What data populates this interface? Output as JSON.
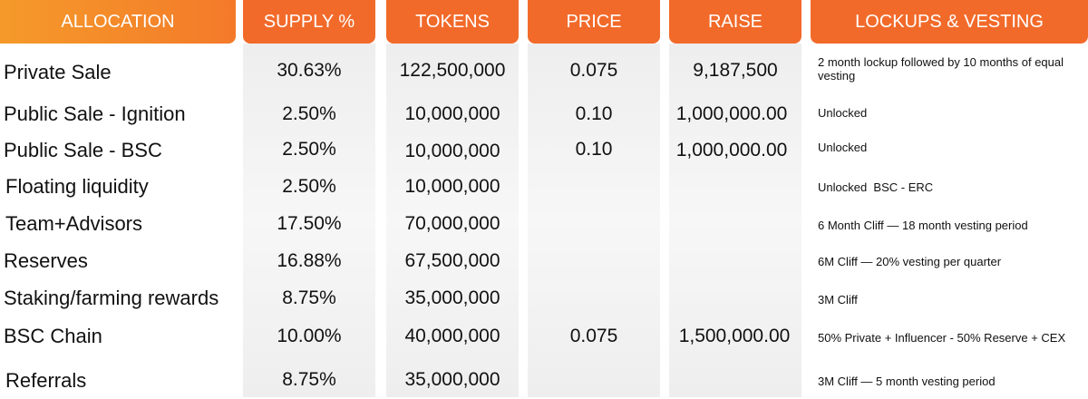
{
  "headers": {
    "allocation": "ALLOCATION",
    "supply": "SUPPLY %",
    "tokens": "TOKENS",
    "price": "PRICE",
    "raise": "RAISE",
    "lockups": "LOCKUPS & VESTING"
  },
  "rows": [
    {
      "allocation": "Private Sale",
      "supply": "30.63%",
      "tokens": "122,500,000",
      "price": "0.075",
      "raise": "9,187,500",
      "lockups": "2 month lockup followed by 10 months of equal vesting"
    },
    {
      "allocation": "Public Sale - Ignition",
      "supply": "2.50%",
      "tokens": "10,000,000",
      "price": "0.10",
      "raise": "1,000,000.00",
      "lockups": "Unlocked"
    },
    {
      "allocation": "Public Sale - BSC",
      "supply": "2.50%",
      "tokens": "10,000,000",
      "price": "0.10",
      "raise": "1,000,000.00",
      "lockups": "Unlocked"
    },
    {
      "allocation": "Floating liquidity",
      "supply": "2.50%",
      "tokens": "10,000,000",
      "price": "",
      "raise": "",
      "lockups": "Unlocked  BSC - ERC"
    },
    {
      "allocation": "Team+Advisors",
      "supply": "17.50%",
      "tokens": "70,000,000",
      "price": "",
      "raise": "",
      "lockups": "6 Month Cliff — 18 month vesting period"
    },
    {
      "allocation": "Reserves",
      "supply": "16.88%",
      "tokens": "67,500,000",
      "price": "",
      "raise": "",
      "lockups": "6M Cliff — 20% vesting per quarter"
    },
    {
      "allocation": "Staking/farming rewards",
      "supply": "8.75%",
      "tokens": "35,000,000",
      "price": "",
      "raise": "",
      "lockups": "3M Cliff"
    },
    {
      "allocation": "BSC Chain",
      "supply": "10.00%",
      "tokens": "40,000,000",
      "price": "0.075",
      "raise": "1,500,000.00",
      "lockups": "50% Private + Influencer - 50% Reserve + CEX"
    },
    {
      "allocation": "Referrals",
      "supply": "8.75%",
      "tokens": "35,000,000",
      "price": "",
      "raise": "",
      "lockups": "3M Cliff — 5 month vesting period"
    }
  ]
}
